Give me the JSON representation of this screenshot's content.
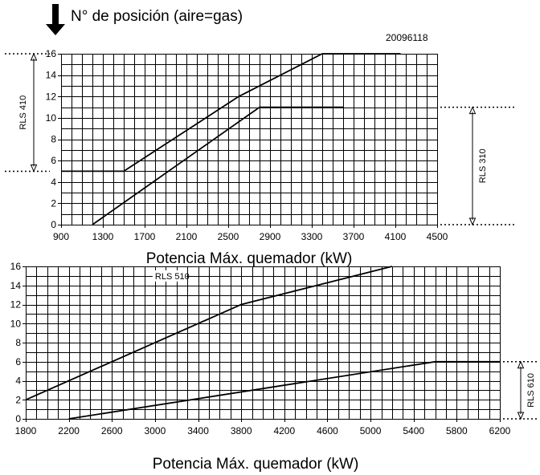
{
  "header": {
    "title": "N° de posición (aire=gas)",
    "code": "20096118"
  },
  "chart_data": [
    {
      "type": "line",
      "xlabel": "Potencia Máx. quemador (kW)",
      "ylabel": "",
      "xlim": [
        900,
        4500
      ],
      "ylim": [
        0,
        16
      ],
      "x_ticks": [
        900,
        1300,
        1700,
        2100,
        2500,
        2900,
        3300,
        3700,
        4100,
        4500
      ],
      "y_ticks": [
        0,
        2,
        4,
        6,
        8,
        10,
        12,
        14,
        16
      ],
      "grid": true,
      "series": [
        {
          "x": [
            900,
            1500,
            2600,
            3400,
            4150
          ],
          "y": [
            5,
            5,
            12,
            16,
            16
          ]
        },
        {
          "x": [
            1200,
            2800,
            3600
          ],
          "y": [
            0,
            11,
            11
          ]
        }
      ],
      "range_markers": [
        {
          "label": "RLS 410",
          "from": 5,
          "to": 16,
          "side": "left"
        },
        {
          "label": "RLS 310",
          "from": 0,
          "to": 11,
          "side": "right"
        }
      ]
    },
    {
      "type": "line",
      "xlabel": "Potencia Máx. quemador (kW)",
      "ylabel": "",
      "xlim": [
        1800,
        6200
      ],
      "ylim": [
        0,
        16
      ],
      "x_ticks": [
        1800,
        2200,
        2600,
        3000,
        3400,
        3800,
        4200,
        4600,
        5000,
        5400,
        5800,
        6200
      ],
      "y_ticks": [
        0,
        2,
        4,
        6,
        8,
        10,
        12,
        14,
        16
      ],
      "grid": true,
      "series": [
        {
          "x": [
            1800,
            3800,
            5200
          ],
          "y": [
            2,
            12,
            16
          ]
        },
        {
          "x": [
            2200,
            5600,
            6200
          ],
          "y": [
            0,
            6,
            6
          ]
        }
      ],
      "annotations": [
        "RLS 510"
      ],
      "range_markers": [
        {
          "label": "RLS 610",
          "from": 0,
          "to": 6,
          "side": "right"
        }
      ]
    }
  ]
}
